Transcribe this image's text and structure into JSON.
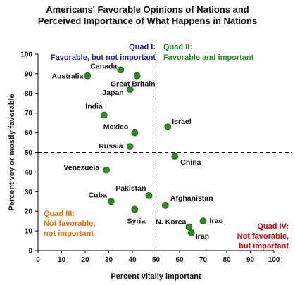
{
  "chart_data": {
    "type": "scatter",
    "title": [
      "Americans' Favorable Opinions of Nations and",
      "Perceived Importance of What Happens in Nations"
    ],
    "xlabel": "Percent vitally important",
    "ylabel": "Percent vey or mostly favorable",
    "xlim": [
      0,
      100
    ],
    "ylim": [
      0,
      100
    ],
    "xticks": [
      0,
      10,
      20,
      30,
      40,
      50,
      60,
      70,
      80,
      90,
      100
    ],
    "yticks": [
      0,
      10,
      20,
      30,
      40,
      50,
      60,
      70,
      80,
      90,
      100
    ],
    "grid": false,
    "marker_color": "#2e8b22",
    "divider": {
      "x": 50,
      "y": 50,
      "style": "dashed"
    },
    "quadrants": [
      {
        "lines": [
          "Quad I:",
          "Favorable, but not important"
        ],
        "color": "#1a1aa6"
      },
      {
        "lines": [
          "Quad II:",
          "Favorable and important"
        ],
        "color": "#1c8c1c"
      },
      {
        "lines": [
          "Quad III:",
          "Not favorable,",
          "not important"
        ],
        "color": "#ff6600"
      },
      {
        "lines": [
          "Quad IV:",
          "Not favorable,",
          "but important"
        ],
        "color": "#e00000"
      }
    ],
    "points": [
      {
        "label": "Canada",
        "x": 35,
        "y": 92
      },
      {
        "label": "Great Britain",
        "x": 42,
        "y": 89
      },
      {
        "label": "Australia",
        "x": 21,
        "y": 89
      },
      {
        "label": "Japan",
        "x": 39,
        "y": 82
      },
      {
        "label": "India",
        "x": 28,
        "y": 69
      },
      {
        "label": "Mexico",
        "x": 41,
        "y": 60
      },
      {
        "label": "Israel",
        "x": 55,
        "y": 63
      },
      {
        "label": "Russia",
        "x": 39,
        "y": 53
      },
      {
        "label": "China",
        "x": 58,
        "y": 48
      },
      {
        "label": "Venezuela",
        "x": 29,
        "y": 41
      },
      {
        "label": "Pakistan",
        "x": 47,
        "y": 28
      },
      {
        "label": "Cuba",
        "x": 31,
        "y": 25
      },
      {
        "label": "Syria",
        "x": 41,
        "y": 21
      },
      {
        "label": "Afghanistan",
        "x": 54,
        "y": 23
      },
      {
        "label": "Iraq",
        "x": 70,
        "y": 15
      },
      {
        "label": "N. Korea",
        "x": 64,
        "y": 12
      },
      {
        "label": "Iran",
        "x": 65,
        "y": 9
      }
    ]
  }
}
